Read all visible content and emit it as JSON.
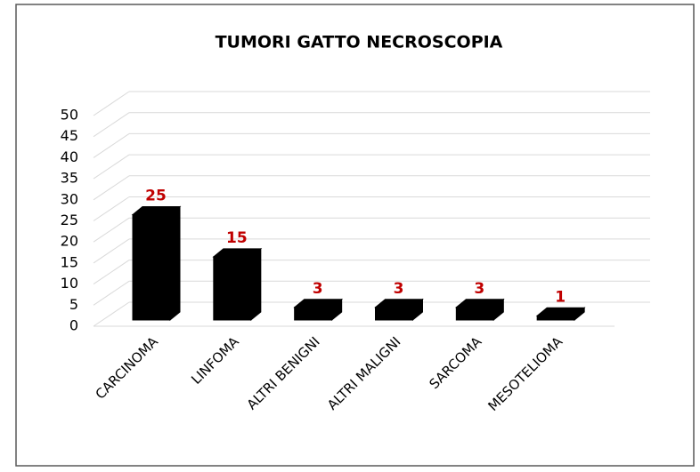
{
  "chart_data": {
    "type": "bar",
    "title": "TUMORI GATTO NECROSCOPIA",
    "categories": [
      "CARCINOMA",
      "LINFOMA",
      "ALTRI BENIGNI",
      "ALTRI MALIGNI",
      "SARCOMA",
      "MESOTELIOMA"
    ],
    "values": [
      25,
      15,
      3,
      3,
      3,
      1
    ],
    "color": "#000000",
    "label_color": "#c00000",
    "ylim": [
      0,
      50
    ],
    "yticks": [
      0,
      5,
      10,
      15,
      20,
      25,
      30,
      35,
      40,
      45,
      50
    ],
    "grid": true
  }
}
